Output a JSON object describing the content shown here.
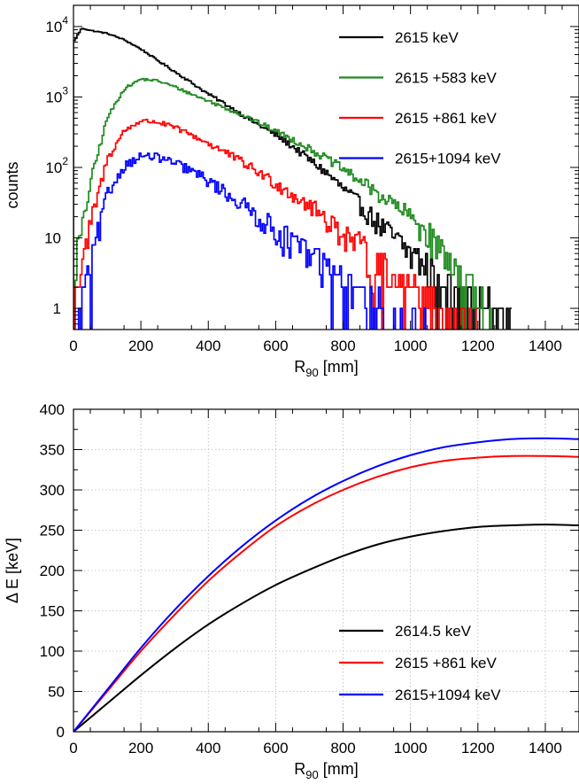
{
  "chart_data": [
    {
      "type": "line",
      "style": "step-histogram",
      "xlabel": "R",
      "xlabel_subscript": "90",
      "xlabel_unit": " [mm]",
      "ylabel": "counts",
      "xlim": [
        0,
        1500
      ],
      "ylim": [
        0.5,
        20000
      ],
      "yscale": "log",
      "grid": false,
      "legend_position": "top-right",
      "x_ticks": [
        0,
        200,
        400,
        600,
        800,
        1000,
        1200,
        1400
      ],
      "x_tick_labels": [
        "0",
        "200",
        "400",
        "600",
        "800",
        "1000",
        "1200",
        "1400"
      ],
      "y_ticks": [
        {
          "value": 1,
          "base": "1",
          "exp": ""
        },
        {
          "value": 10,
          "base": "10",
          "exp": ""
        },
        {
          "value": 100,
          "base": "10",
          "exp": "2"
        },
        {
          "value": 1000,
          "base": "10",
          "exp": "3"
        },
        {
          "value": 10000,
          "base": "10",
          "exp": "4"
        }
      ],
      "series": [
        {
          "name": "2615 keV",
          "color": "#000000",
          "x": [
            0,
            25,
            50,
            100,
            150,
            200,
            250,
            300,
            350,
            400,
            450,
            500,
            550,
            600,
            650,
            700,
            750,
            800,
            850,
            900,
            950,
            1000,
            1050,
            1100,
            1150,
            1200,
            1250,
            1300
          ],
          "y": [
            6000,
            9500,
            8800,
            8000,
            6500,
            4800,
            3300,
            2300,
            1600,
            1100,
            800,
            560,
            400,
            290,
            200,
            130,
            85,
            50,
            30,
            17,
            10,
            6,
            3.5,
            2.2,
            1.5,
            1.1,
            0.9,
            0.8
          ]
        },
        {
          "name": "2615 +583 keV",
          "color": "#1f8b1f",
          "x": [
            5,
            25,
            50,
            100,
            150,
            200,
            250,
            300,
            350,
            400,
            450,
            500,
            550,
            600,
            650,
            700,
            750,
            800,
            850,
            900,
            950,
            1000,
            1050,
            1100,
            1150,
            1200,
            1250
          ],
          "y": [
            5,
            12,
            60,
            500,
            1300,
            1800,
            1700,
            1400,
            1100,
            880,
            700,
            560,
            430,
            330,
            250,
            185,
            135,
            95,
            65,
            44,
            30,
            20,
            12,
            6,
            3,
            1.4,
            0.8
          ]
        },
        {
          "name": "2615 +861 keV",
          "color": "#ff0000",
          "x": [
            5,
            25,
            50,
            100,
            150,
            200,
            250,
            300,
            350,
            400,
            450,
            500,
            550,
            600,
            650,
            700,
            750,
            800,
            850,
            900,
            950,
            1000,
            1050,
            1100,
            1150,
            1200
          ],
          "y": [
            1.5,
            3,
            15,
            130,
            330,
            460,
            440,
            370,
            290,
            220,
            165,
            120,
            85,
            60,
            42,
            29,
            19,
            12,
            7.5,
            4.5,
            3,
            2,
            1.4,
            1,
            0.8,
            0.7
          ]
        },
        {
          "name": "2615+1094 keV",
          "color": "#0000ff",
          "x": [
            10,
            25,
            50,
            100,
            150,
            200,
            250,
            300,
            350,
            400,
            450,
            500,
            550,
            600,
            650,
            700,
            750,
            800,
            850,
            900,
            950,
            1000,
            1050
          ],
          "y": [
            0.7,
            1.2,
            4,
            40,
            105,
            145,
            140,
            115,
            90,
            65,
            45,
            30,
            20,
            13,
            8.5,
            5.5,
            3.5,
            2.3,
            1.6,
            1.2,
            1,
            0.8,
            0.7
          ]
        }
      ]
    },
    {
      "type": "line",
      "xlabel": "R",
      "xlabel_subscript": "90",
      "xlabel_unit": " [mm]",
      "ylabel": "Δ E [keV]",
      "xlim": [
        0,
        1500
      ],
      "ylim": [
        0,
        400
      ],
      "grid": true,
      "legend_position": "bottom-right",
      "x_ticks": [
        0,
        200,
        400,
        600,
        800,
        1000,
        1200,
        1400
      ],
      "x_tick_labels": [
        "0",
        "200",
        "400",
        "600",
        "800",
        "1000",
        "1200",
        "1400"
      ],
      "y_ticks": [
        0,
        50,
        100,
        150,
        200,
        250,
        300,
        350,
        400
      ],
      "y_tick_labels": [
        "0",
        "50",
        "100",
        "150",
        "200",
        "250",
        "300",
        "350",
        "400"
      ],
      "series": [
        {
          "name": "2614.5 keV",
          "color": "#000000",
          "x": [
            0,
            100,
            200,
            300,
            400,
            500,
            600,
            700,
            800,
            900,
            1000,
            1100,
            1200,
            1300,
            1400,
            1500
          ],
          "y": [
            0,
            35,
            70,
            103,
            133,
            159,
            182,
            201,
            218,
            232,
            242,
            249,
            254,
            256,
            257,
            256
          ]
        },
        {
          "name": "2615 +861 keV",
          "color": "#ff0000",
          "x": [
            0,
            100,
            200,
            300,
            400,
            500,
            600,
            700,
            800,
            900,
            1000,
            1100,
            1200,
            1300,
            1400,
            1500
          ],
          "y": [
            0,
            50,
            100,
            145,
            187,
            223,
            255,
            280,
            300,
            316,
            328,
            336,
            340,
            342,
            342,
            341
          ]
        },
        {
          "name": "2615+1094 keV",
          "color": "#0000ff",
          "x": [
            0,
            100,
            200,
            300,
            400,
            500,
            600,
            700,
            800,
            900,
            1000,
            1100,
            1200,
            1300,
            1400,
            1500
          ],
          "y": [
            0,
            52,
            104,
            151,
            193,
            230,
            262,
            289,
            311,
            329,
            343,
            353,
            359,
            363,
            364,
            363
          ]
        }
      ]
    }
  ]
}
